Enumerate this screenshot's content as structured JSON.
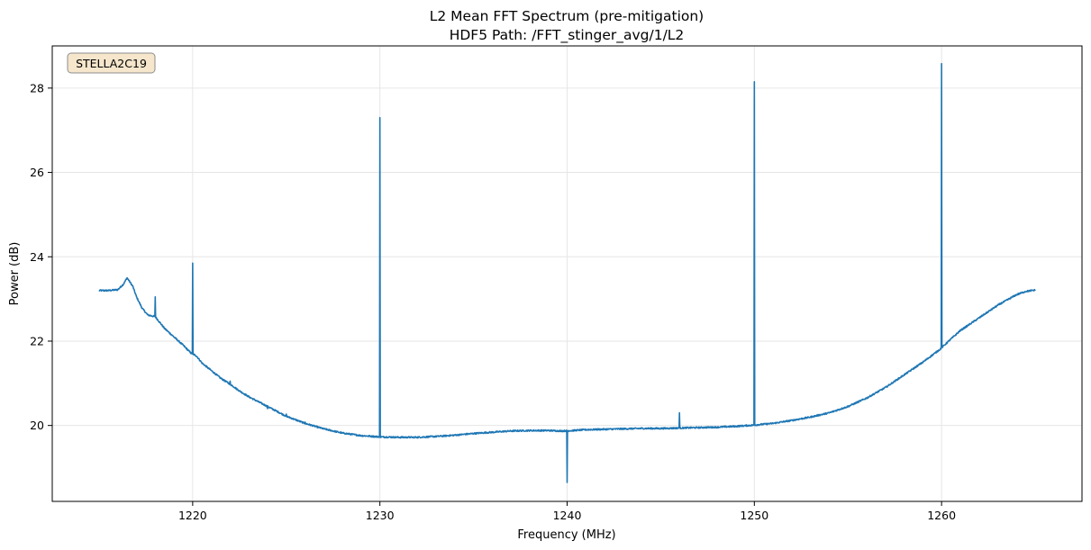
{
  "chart_data": {
    "type": "line",
    "title": "L2 Mean FFT Spectrum (pre-mitigation)",
    "subtitle": "HDF5 Path: /FFT_stinger_avg/1/L2",
    "xlabel": "Frequency (MHz)",
    "ylabel": "Power (dB)",
    "xlim": [
      1212.5,
      1267.5
    ],
    "ylim": [
      18.2,
      29.0
    ],
    "xticks": [
      1220,
      1230,
      1240,
      1250,
      1260
    ],
    "yticks": [
      20,
      22,
      24,
      26,
      28
    ],
    "grid": true,
    "annotation": "STELLA2C19",
    "color": "#1f77b4",
    "baseline": [
      [
        1215.0,
        23.2
      ],
      [
        1215.5,
        23.2
      ],
      [
        1216.0,
        23.22
      ],
      [
        1216.3,
        23.35
      ],
      [
        1216.5,
        23.5
      ],
      [
        1216.8,
        23.3
      ],
      [
        1217.0,
        23.05
      ],
      [
        1217.3,
        22.78
      ],
      [
        1217.6,
        22.62
      ],
      [
        1218.0,
        22.58
      ],
      [
        1218.5,
        22.3
      ],
      [
        1219.0,
        22.1
      ],
      [
        1219.5,
        21.9
      ],
      [
        1219.9,
        21.72
      ],
      [
        1220.2,
        21.65
      ],
      [
        1220.5,
        21.48
      ],
      [
        1221.0,
        21.3
      ],
      [
        1221.5,
        21.12
      ],
      [
        1222.0,
        20.98
      ],
      [
        1222.5,
        20.82
      ],
      [
        1223.0,
        20.68
      ],
      [
        1224.0,
        20.45
      ],
      [
        1225.0,
        20.22
      ],
      [
        1226.0,
        20.05
      ],
      [
        1227.0,
        19.92
      ],
      [
        1228.0,
        19.82
      ],
      [
        1229.0,
        19.76
      ],
      [
        1230.0,
        19.73
      ],
      [
        1231.0,
        19.72
      ],
      [
        1232.0,
        19.72
      ],
      [
        1233.0,
        19.74
      ],
      [
        1234.0,
        19.77
      ],
      [
        1235.0,
        19.81
      ],
      [
        1236.0,
        19.84
      ],
      [
        1237.0,
        19.87
      ],
      [
        1238.0,
        19.88
      ],
      [
        1239.0,
        19.88
      ],
      [
        1239.7,
        19.87
      ],
      [
        1240.3,
        19.88
      ],
      [
        1241.0,
        19.9
      ],
      [
        1242.0,
        19.91
      ],
      [
        1243.0,
        19.92
      ],
      [
        1244.0,
        19.93
      ],
      [
        1245.0,
        19.93
      ],
      [
        1246.0,
        19.94
      ],
      [
        1247.0,
        19.95
      ],
      [
        1248.0,
        19.96
      ],
      [
        1249.0,
        19.98
      ],
      [
        1250.0,
        20.01
      ],
      [
        1251.0,
        20.05
      ],
      [
        1252.0,
        20.12
      ],
      [
        1253.0,
        20.2
      ],
      [
        1254.0,
        20.3
      ],
      [
        1255.0,
        20.45
      ],
      [
        1256.0,
        20.65
      ],
      [
        1257.0,
        20.9
      ],
      [
        1258.0,
        21.2
      ],
      [
        1259.0,
        21.5
      ],
      [
        1259.9,
        21.8
      ],
      [
        1260.5,
        22.05
      ],
      [
        1261.0,
        22.25
      ],
      [
        1262.0,
        22.55
      ],
      [
        1263.0,
        22.85
      ],
      [
        1264.0,
        23.1
      ],
      [
        1264.5,
        23.18
      ],
      [
        1265.0,
        23.21
      ]
    ],
    "spikes": [
      {
        "x": 1218.0,
        "y": 23.05
      },
      {
        "x": 1220.0,
        "y": 23.85
      },
      {
        "x": 1222.0,
        "y": 21.05
      },
      {
        "x": 1224.0,
        "y": 20.4
      },
      {
        "x": 1225.0,
        "y": 20.27
      },
      {
        "x": 1226.0,
        "y": 20.08
      },
      {
        "x": 1230.0,
        "y": 27.3
      },
      {
        "x": 1240.0,
        "y": 18.65
      },
      {
        "x": 1246.0,
        "y": 20.3
      },
      {
        "x": 1250.0,
        "y": 28.15
      },
      {
        "x": 1260.0,
        "y": 28.58
      }
    ]
  }
}
